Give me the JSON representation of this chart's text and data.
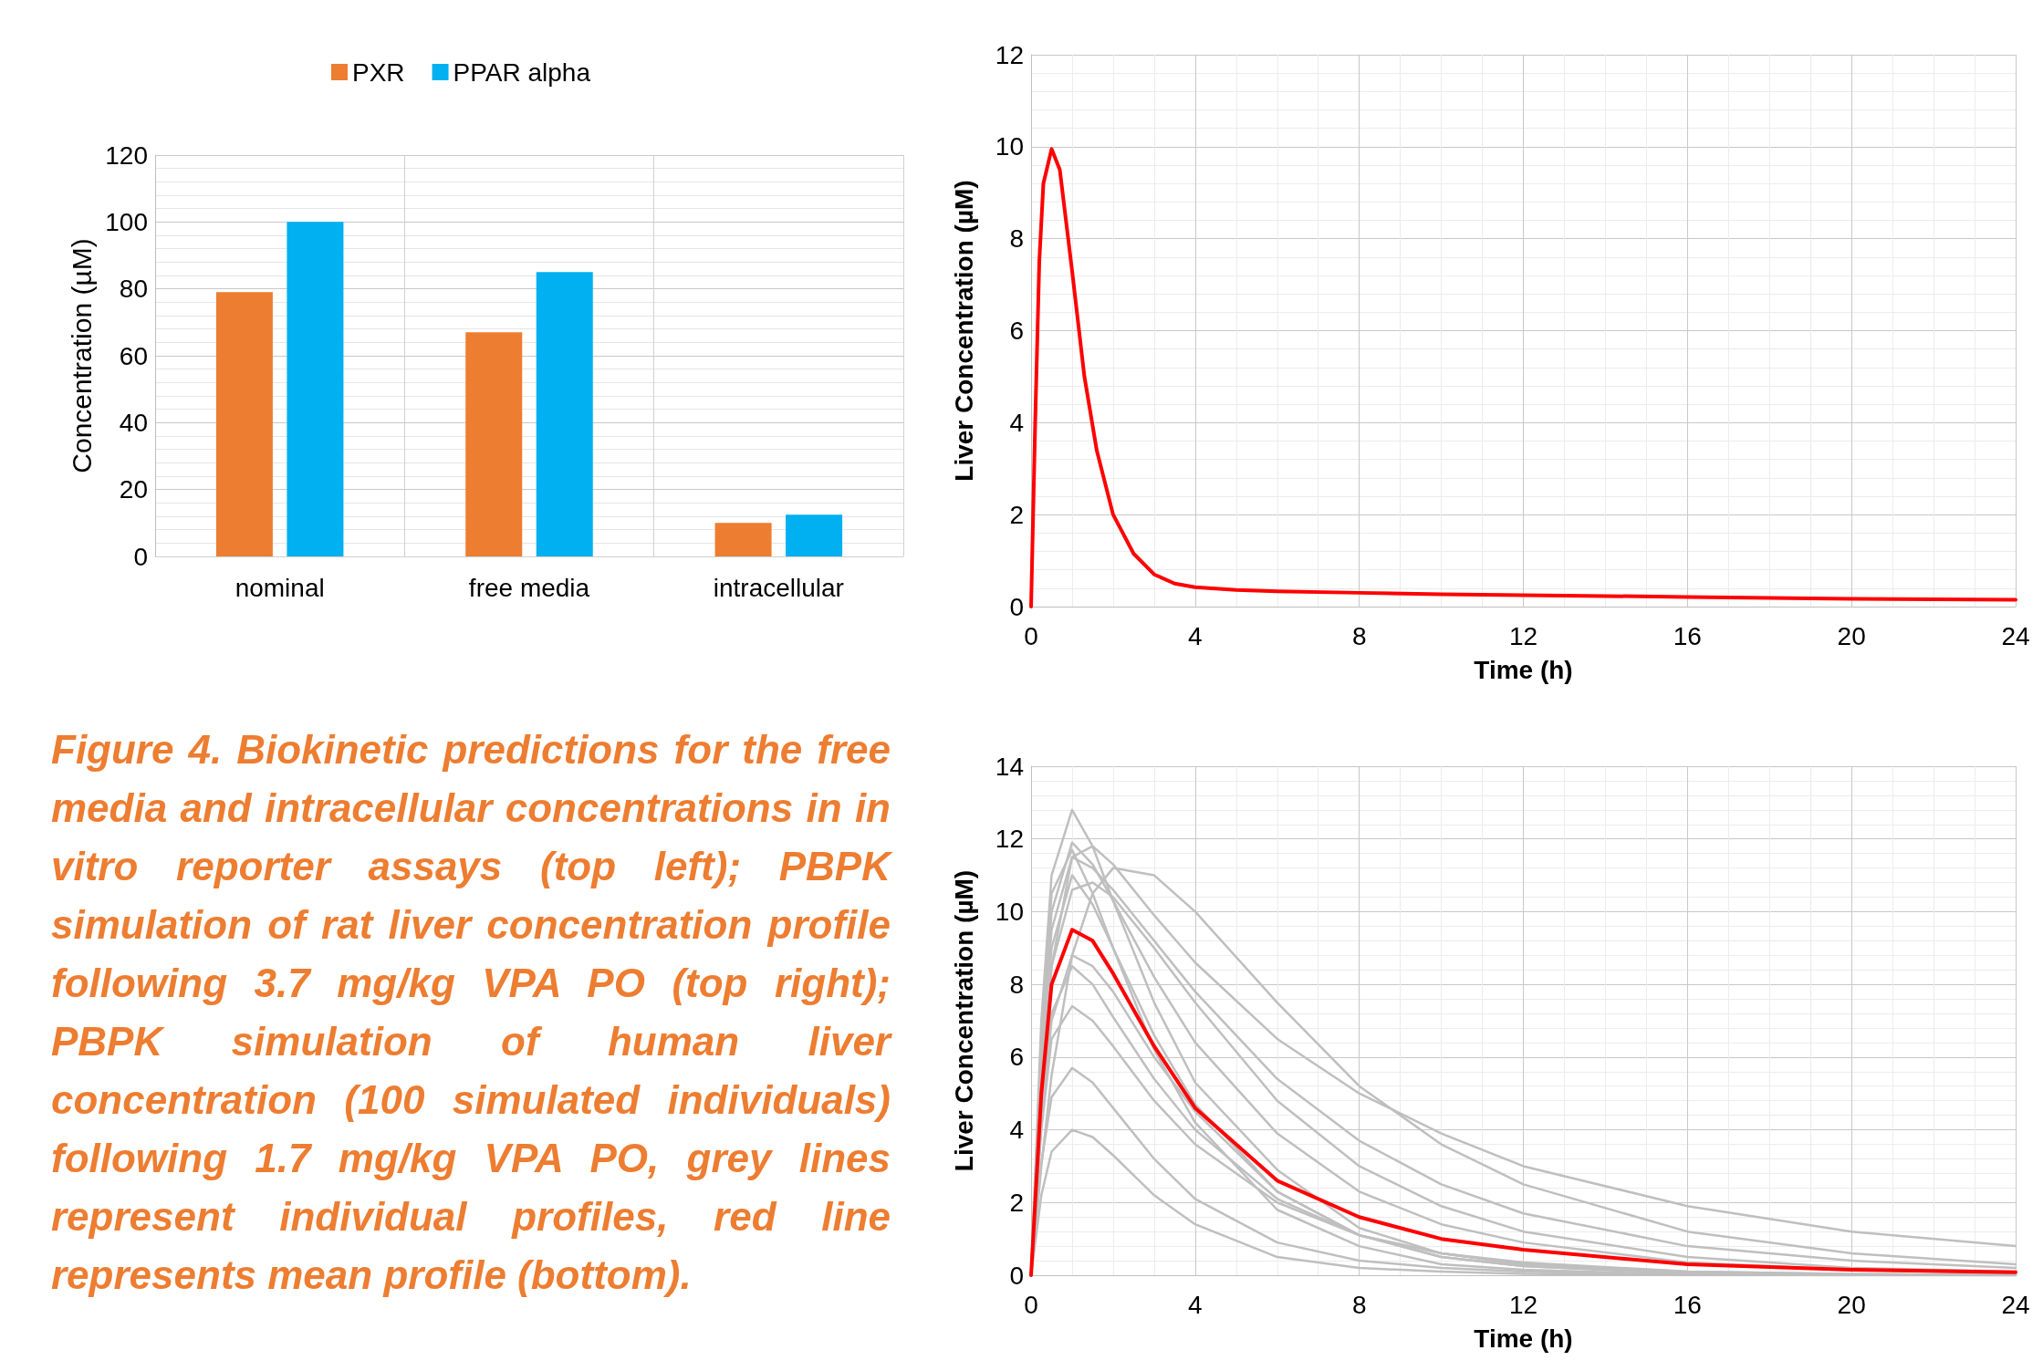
{
  "chart_data": [
    {
      "type": "bar",
      "categories": [
        "nominal",
        "free media",
        "intracellular"
      ],
      "ylabel": "Concentration (µM)",
      "ylim": [
        0,
        120
      ],
      "yticks": [
        0,
        20,
        40,
        60,
        80,
        100,
        120
      ],
      "grid": true,
      "legend": "top",
      "series": [
        {
          "name": "PXR",
          "color": "#ed7d31",
          "values": [
            79,
            67,
            10
          ]
        },
        {
          "name": "PPAR alpha",
          "color": "#00b0f0",
          "values": [
            100,
            85,
            12.5
          ]
        }
      ],
      "annotations": [
        "Figure 4. Biokinetic predictions for the free media and intracellular concentrations in in vitro reporter assays (top left); PBPK simulation of rat liver concentration profile following 3.7 mg/kg VPA PO (top right); PBPK simulation of human liver  concentration (100 simulated individuals) following 1.7 mg/kg VPA PO, grey lines represent individual profiles, red line represents mean profile (bottom)."
      ]
    },
    {
      "type": "line",
      "xlabel": "Time (h)",
      "ylabel": "Liver Concentration (µM)",
      "xlim": [
        0,
        24
      ],
      "xticks": [
        0,
        4,
        8,
        12,
        16,
        20,
        24
      ],
      "ylim": [
        0,
        12
      ],
      "yticks": [
        0,
        2,
        4,
        6,
        8,
        10,
        12
      ],
      "grid": true,
      "marker": "none",
      "series": [
        {
          "color": "#ff0000",
          "x": [
            0,
            0.1,
            0.2,
            0.3,
            0.5,
            0.7,
            1,
            1.3,
            1.6,
            2,
            2.5,
            3,
            3.5,
            4,
            5,
            6,
            8,
            10,
            12,
            14,
            16,
            18,
            20,
            22,
            24
          ],
          "values": [
            0,
            4,
            7.5,
            9.2,
            9.95,
            9.5,
            7.3,
            5,
            3.4,
            2.0,
            1.15,
            0.7,
            0.5,
            0.42,
            0.36,
            0.33,
            0.3,
            0.27,
            0.25,
            0.23,
            0.21,
            0.19,
            0.17,
            0.16,
            0.15
          ]
        }
      ]
    },
    {
      "type": "line",
      "xlabel": "Time (h)",
      "ylabel": "Liver Concentration (µM)",
      "xlim": [
        0,
        24
      ],
      "xticks": [
        0,
        4,
        8,
        12,
        16,
        20,
        24
      ],
      "ylim": [
        0,
        14
      ],
      "yticks": [
        0,
        2,
        4,
        6,
        8,
        10,
        12,
        14
      ],
      "grid": true,
      "marker": "none",
      "x": [
        0,
        0.25,
        0.5,
        1,
        1.5,
        2,
        3,
        4,
        6,
        8,
        10,
        12,
        16,
        20,
        24
      ],
      "series": [
        {
          "color": "#bfbfbf",
          "values": [
            0,
            7,
            11,
            12.8,
            11.8,
            10.3,
            7.5,
            5.3,
            2.9,
            1.3,
            0.6,
            0.3,
            0.07,
            0.02,
            0
          ]
        },
        {
          "color": "#bfbfbf",
          "values": [
            0,
            2.2,
            3.4,
            4.0,
            3.8,
            3.3,
            2.2,
            1.4,
            0.5,
            0.2,
            0.1,
            0.04,
            0,
            0,
            0
          ]
        },
        {
          "color": "#bfbfbf",
          "values": [
            0,
            3.1,
            4.9,
            5.7,
            5.3,
            4.6,
            3.2,
            2.1,
            0.9,
            0.4,
            0.2,
            0.1,
            0,
            0,
            0
          ]
        },
        {
          "color": "#bfbfbf",
          "values": [
            0,
            3,
            5.5,
            8.8,
            10.5,
            11.2,
            11.0,
            10.0,
            7.5,
            5.2,
            3.6,
            2.5,
            1.2,
            0.6,
            0.3
          ]
        },
        {
          "color": "#bfbfbf",
          "values": [
            0,
            5,
            8.5,
            11.5,
            11.8,
            11.3,
            9.9,
            8.6,
            6.5,
            5.0,
            3.9,
            3.0,
            1.9,
            1.2,
            0.8
          ]
        },
        {
          "color": "#bfbfbf",
          "values": [
            0,
            6,
            10,
            11.9,
            11.3,
            10.3,
            8.2,
            6.4,
            3.9,
            2.3,
            1.4,
            0.9,
            0.35,
            0.15,
            0.05
          ]
        },
        {
          "color": "#bfbfbf",
          "values": [
            0,
            5.5,
            9,
            11,
            10.2,
            9,
            6.6,
            4.7,
            2.3,
            1.1,
            0.5,
            0.25,
            0.05,
            0.01,
            0
          ]
        },
        {
          "color": "#bfbfbf",
          "values": [
            0,
            4.5,
            7.2,
            8.5,
            8,
            7.1,
            5.4,
            4,
            2.1,
            1.1,
            0.6,
            0.3,
            0.1,
            0.03,
            0
          ]
        },
        {
          "color": "#bfbfbf",
          "values": [
            0,
            4,
            6.5,
            7.4,
            7,
            6.3,
            4.8,
            3.6,
            2,
            1.1,
            0.6,
            0.35,
            0.1,
            0.03,
            0.01
          ]
        },
        {
          "color": "#bfbfbf",
          "values": [
            0,
            5.8,
            9.5,
            11.5,
            11.2,
            10.6,
            9.2,
            7.8,
            5.4,
            3.7,
            2.5,
            1.7,
            0.8,
            0.4,
            0.2
          ]
        },
        {
          "color": "#bfbfbf",
          "values": [
            0,
            6.5,
            10.5,
            11.7,
            10.5,
            9,
            6.2,
            4.2,
            1.8,
            0.8,
            0.3,
            0.15,
            0.02,
            0,
            0
          ]
        },
        {
          "color": "#bfbfbf",
          "values": [
            0,
            5.2,
            8.5,
            10.6,
            10.8,
            10.4,
            9,
            7.5,
            4.8,
            3,
            1.9,
            1.2,
            0.5,
            0.2,
            0.1
          ]
        },
        {
          "color": "#bfbfbf",
          "values": [
            0,
            4.2,
            7,
            8.8,
            8.5,
            7.8,
            6,
            4.5,
            2.3,
            1.1,
            0.5,
            0.25,
            0.05,
            0.01,
            0
          ]
        },
        {
          "color": "#ff0000",
          "values": [
            0,
            5,
            8,
            9.5,
            9.2,
            8.3,
            6.3,
            4.6,
            2.6,
            1.6,
            1.0,
            0.7,
            0.3,
            0.15,
            0.08
          ]
        }
      ]
    }
  ]
}
